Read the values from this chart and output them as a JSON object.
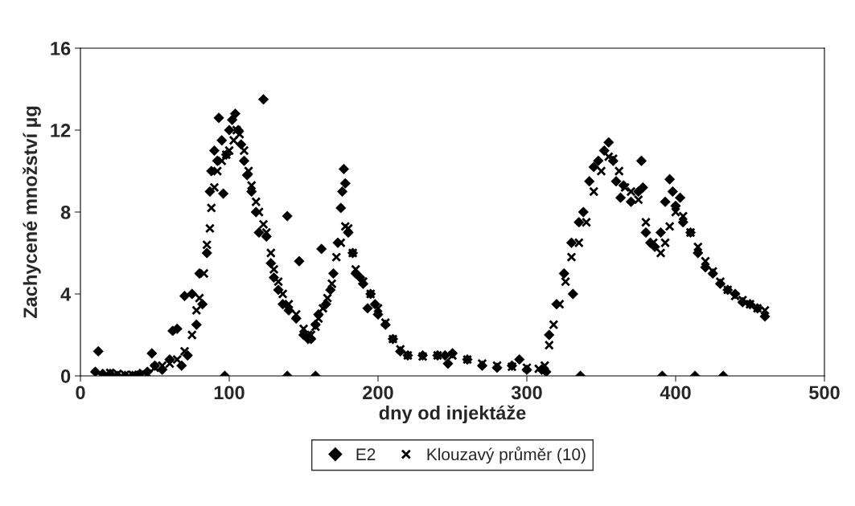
{
  "chart_data": {
    "type": "scatter",
    "xlabel": "dny od injektáže",
    "ylabel": "Zachycené množství µg",
    "xlim": [
      0,
      500
    ],
    "xticks": [
      0,
      100,
      200,
      300,
      400,
      500
    ],
    "ylim": [
      0,
      16
    ],
    "yticks": [
      0,
      4,
      8,
      12,
      16
    ],
    "grid": false,
    "legend": "bottom",
    "series": [
      {
        "name": "E2",
        "color": "#000000",
        "marker": "diamond",
        "x": [
          10,
          12,
          15,
          20,
          25,
          30,
          35,
          40,
          45,
          48,
          50,
          55,
          60,
          62,
          65,
          68,
          70,
          72,
          75,
          78,
          80,
          82,
          85,
          87,
          88,
          90,
          92,
          93,
          95,
          96,
          98,
          100,
          102,
          104,
          106,
          108,
          110,
          112,
          115,
          118,
          120,
          123,
          125,
          128,
          130,
          133,
          136,
          139,
          140,
          145,
          147,
          150,
          153,
          155,
          158,
          160,
          162,
          165,
          168,
          170,
          173,
          175,
          176,
          177,
          178,
          180,
          183,
          185,
          188,
          190,
          193,
          195,
          198,
          200,
          205,
          210,
          215,
          220,
          230,
          240,
          245,
          247,
          250,
          260,
          270,
          280,
          290,
          295,
          300,
          310,
          313,
          315,
          320,
          325,
          330,
          331,
          335,
          338,
          342,
          345,
          348,
          352,
          355,
          358,
          360,
          363,
          365,
          370,
          375,
          377,
          378,
          380,
          383,
          386,
          390,
          393,
          396,
          398,
          400,
          403,
          405,
          410,
          415,
          420,
          425,
          430,
          435,
          440,
          445,
          450,
          455,
          460,
          97,
          139,
          158,
          336,
          391,
          413,
          432
        ],
        "values": [
          0.2,
          1.2,
          0.1,
          0.1,
          0.0,
          0.0,
          0.0,
          0.1,
          0.2,
          1.1,
          0.5,
          0.3,
          0.8,
          2.2,
          2.3,
          0.5,
          3.9,
          1.0,
          4.0,
          2.5,
          5.0,
          3.5,
          6.0,
          9.0,
          10.0,
          11.0,
          10.5,
          12.6,
          11.5,
          8.9,
          10.8,
          12.0,
          12.5,
          12.8,
          12.0,
          11.3,
          10.5,
          9.8,
          9.0,
          8.0,
          7.0,
          13.5,
          6.8,
          5.5,
          4.8,
          4.2,
          3.5,
          7.8,
          3.2,
          2.8,
          5.6,
          2.0,
          1.8,
          1.8,
          2.5,
          3.0,
          6.2,
          3.5,
          4.2,
          5.0,
          6.5,
          8.2,
          9.0,
          10.1,
          9.4,
          7.0,
          6.0,
          5.0,
          4.8,
          4.5,
          3.3,
          4.0,
          3.5,
          3.0,
          2.5,
          1.8,
          1.2,
          1.0,
          1.0,
          1.0,
          1.0,
          0.6,
          1.1,
          0.8,
          0.5,
          0.4,
          0.5,
          0.8,
          0.3,
          0.3,
          0.2,
          2.0,
          3.5,
          5.0,
          6.5,
          4.0,
          7.5,
          8.0,
          9.5,
          10.2,
          10.5,
          11.0,
          11.4,
          10.5,
          9.5,
          8.7,
          9.3,
          8.5,
          9.0,
          10.5,
          9.2,
          7.0,
          6.5,
          6.3,
          7.0,
          8.5,
          9.6,
          9.0,
          8.3,
          8.7,
          7.5,
          7.0,
          6.0,
          5.3,
          5.0,
          4.5,
          4.2,
          4.0,
          3.6,
          3.5,
          3.3,
          2.9,
          0,
          0,
          0,
          0,
          0,
          0,
          0
        ]
      },
      {
        "name": "Klouzavý průměr (10)",
        "color": "#000000",
        "marker": "cross",
        "x": [
          20,
          25,
          30,
          35,
          40,
          45,
          50,
          55,
          60,
          65,
          70,
          75,
          78,
          80,
          83,
          85,
          87,
          88,
          90,
          92,
          95,
          98,
          100,
          103,
          105,
          107,
          110,
          113,
          115,
          118,
          120,
          123,
          125,
          128,
          130,
          133,
          136,
          140,
          145,
          150,
          153,
          155,
          158,
          160,
          163,
          166,
          169,
          172,
          175,
          178,
          180,
          183,
          185,
          190,
          195,
          200,
          205,
          210,
          215,
          220,
          230,
          240,
          250,
          260,
          270,
          280,
          290,
          300,
          308,
          312,
          315,
          318,
          322,
          326,
          330,
          335,
          340,
          345,
          350,
          355,
          358,
          362,
          366,
          370,
          375,
          380,
          385,
          390,
          393,
          396,
          400,
          405,
          410,
          415,
          420,
          425,
          430,
          435,
          440,
          445,
          450,
          455,
          460
        ],
        "values": [
          0.15,
          0.1,
          0.05,
          0.05,
          0.05,
          0.1,
          0.4,
          0.5,
          0.6,
          0.8,
          1.2,
          2.0,
          3.2,
          3.8,
          5.0,
          6.4,
          7.2,
          8.2,
          9.2,
          10.0,
          10.5,
          10.8,
          11.0,
          11.5,
          12.0,
          11.8,
          11.0,
          10.0,
          9.3,
          8.5,
          8.0,
          7.4,
          7.0,
          6.0,
          5.2,
          4.6,
          4.0,
          3.5,
          3.0,
          2.3,
          2.0,
          2.0,
          2.4,
          2.8,
          3.3,
          3.8,
          4.5,
          5.8,
          6.5,
          7.3,
          7.2,
          6.0,
          5.2,
          4.6,
          4.0,
          3.3,
          2.6,
          1.8,
          1.3,
          1.0,
          0.95,
          1.0,
          1.0,
          0.8,
          0.6,
          0.5,
          0.45,
          0.4,
          0.35,
          0.5,
          1.5,
          2.5,
          3.5,
          4.6,
          5.8,
          6.5,
          7.5,
          9.0,
          10.0,
          10.7,
          10.6,
          10.0,
          9.2,
          9.0,
          8.6,
          7.5,
          6.5,
          6.0,
          6.5,
          7.3,
          8.0,
          7.8,
          7.0,
          6.3,
          5.6,
          5.1,
          4.6,
          4.2,
          3.9,
          3.7,
          3.5,
          3.3,
          3.2
        ]
      }
    ]
  }
}
